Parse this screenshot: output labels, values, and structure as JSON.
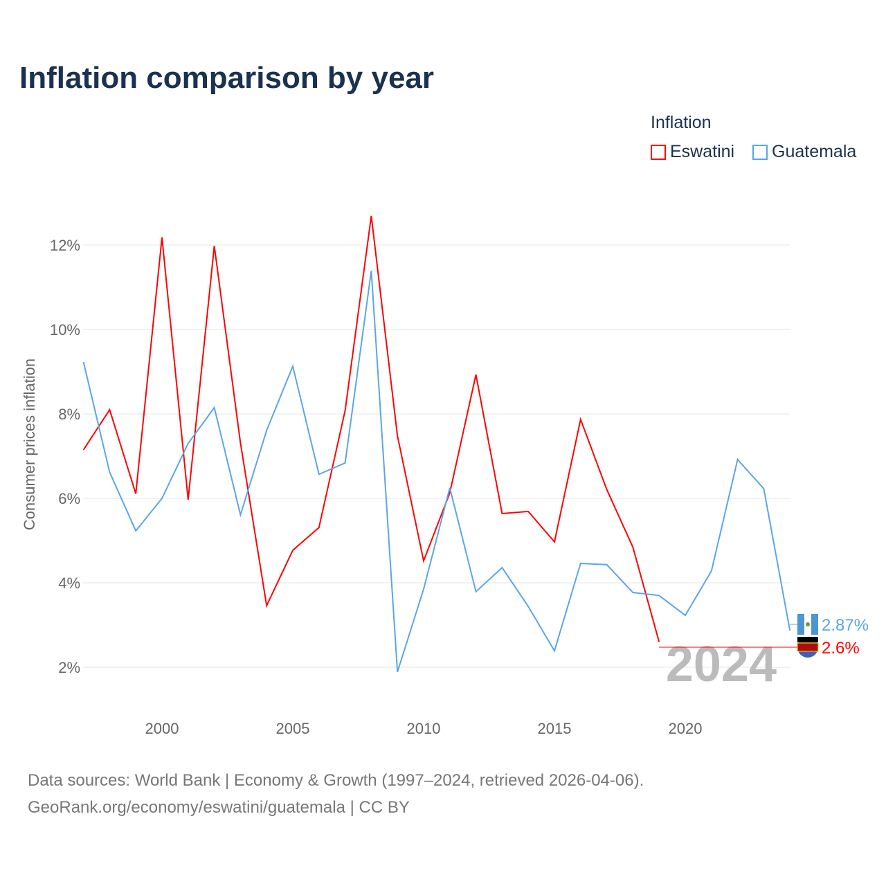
{
  "title": "Inflation comparison by year",
  "legend": {
    "title": "Inflation",
    "items": [
      {
        "name": "Eswatini",
        "color": "#ff0000"
      },
      {
        "name": "Guatemala",
        "color": "#5aa5ea"
      }
    ]
  },
  "source": {
    "line1": "Data sources: World Bank | Economy & Growth (1997–2024, retrieved 2026-04-06).",
    "line2": "GeoRank.org/economy/eswatini/guatemala | CC BY"
  },
  "chart_data": {
    "type": "line",
    "title": "Inflation comparison by year",
    "ylabel": "Consumer prices inflation",
    "xlabel": "",
    "ylim": [
      0.9,
      13.3
    ],
    "xlim": [
      1997,
      2024
    ],
    "yticks": [
      "2%",
      "4%",
      "6%",
      "8%",
      "10%",
      "12%"
    ],
    "ytick_values": [
      2,
      4,
      6,
      8,
      10,
      12
    ],
    "xticks": [
      "2000",
      "2005",
      "2010",
      "2015",
      "2020"
    ],
    "xtick_values": [
      2000,
      2005,
      2010,
      2015,
      2020
    ],
    "year_label": "2024",
    "series": [
      {
        "name": "Eswatini",
        "color": "#ff0000",
        "end_label": "2.6%",
        "x": [
          1997,
          1998,
          1999,
          2000,
          2001,
          2002,
          2003,
          2004,
          2005,
          2006,
          2007,
          2008,
          2009,
          2010,
          2011,
          2012,
          2013,
          2014,
          2015,
          2016,
          2017,
          2018,
          2019
        ],
        "values": [
          7.15,
          8.1,
          6.11,
          12.18,
          5.97,
          11.98,
          7.31,
          3.46,
          4.77,
          5.31,
          8.08,
          12.69,
          7.48,
          4.52,
          6.13,
          8.93,
          5.64,
          5.69,
          4.97,
          7.87,
          6.21,
          4.84,
          2.6
        ]
      },
      {
        "name": "Guatemala",
        "color": "#5aa5ea",
        "end_label": "2.87%",
        "x": [
          1997,
          1998,
          1999,
          2000,
          2001,
          2002,
          2003,
          2004,
          2005,
          2006,
          2007,
          2008,
          2009,
          2010,
          2011,
          2012,
          2013,
          2014,
          2015,
          2016,
          2017,
          2018,
          2019,
          2020,
          2021,
          2022,
          2023,
          2024
        ],
        "values": [
          9.23,
          6.62,
          5.23,
          6.0,
          7.3,
          8.15,
          5.61,
          7.61,
          9.13,
          6.57,
          6.84,
          11.39,
          1.89,
          3.85,
          6.25,
          3.79,
          4.36,
          3.44,
          2.39,
          4.46,
          4.43,
          3.77,
          3.7,
          3.23,
          4.28,
          6.92,
          6.23,
          2.87
        ]
      }
    ]
  }
}
